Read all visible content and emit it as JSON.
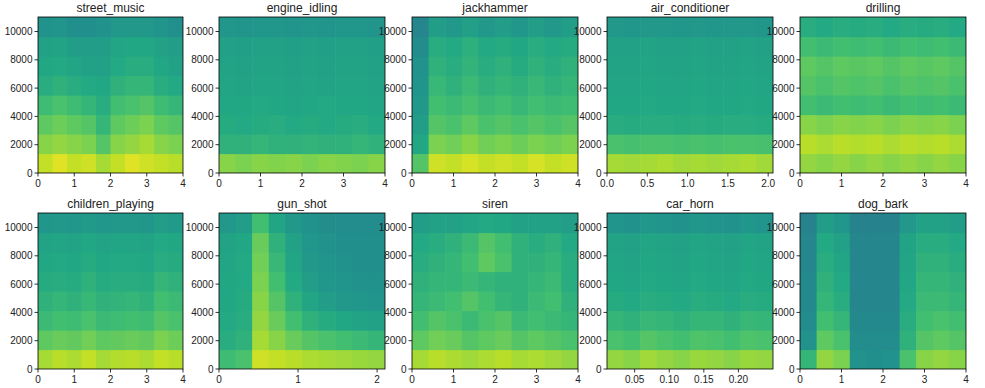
{
  "chart_data": [
    {
      "type": "heatmap",
      "title": "street_music",
      "xlim": [
        0,
        4
      ],
      "xticks": [
        0,
        1,
        2,
        3,
        4
      ],
      "ylim": [
        0,
        11025
      ],
      "yticks": [
        0,
        2000,
        4000,
        6000,
        8000,
        10000
      ],
      "zlim": [
        0,
        1
      ],
      "cells": [
        [
          0.9,
          0.95,
          0.9,
          0.92,
          0.85,
          0.9,
          0.95,
          0.92,
          0.9,
          0.88
        ],
        [
          0.8,
          0.82,
          0.8,
          0.78,
          0.7,
          0.8,
          0.82,
          0.85,
          0.8,
          0.78
        ],
        [
          0.72,
          0.75,
          0.72,
          0.7,
          0.62,
          0.72,
          0.75,
          0.78,
          0.72,
          0.7
        ],
        [
          0.65,
          0.68,
          0.65,
          0.62,
          0.58,
          0.66,
          0.68,
          0.7,
          0.65,
          0.62
        ],
        [
          0.58,
          0.6,
          0.58,
          0.56,
          0.55,
          0.6,
          0.62,
          0.62,
          0.58,
          0.56
        ],
        [
          0.55,
          0.56,
          0.54,
          0.52,
          0.52,
          0.56,
          0.58,
          0.58,
          0.55,
          0.52
        ],
        [
          0.52,
          0.53,
          0.5,
          0.5,
          0.5,
          0.54,
          0.55,
          0.55,
          0.52,
          0.5
        ],
        [
          0.45,
          0.46,
          0.44,
          0.44,
          0.45,
          0.48,
          0.48,
          0.48,
          0.46,
          0.44
        ]
      ]
    },
    {
      "type": "heatmap",
      "title": "engine_idling",
      "xlim": [
        0,
        4
      ],
      "xticks": [
        0,
        1,
        2,
        3,
        4
      ],
      "ylim": [
        0,
        11025
      ],
      "yticks": [
        0,
        2000,
        4000,
        6000,
        8000,
        10000
      ],
      "zlim": [
        0,
        1
      ],
      "cells": [
        [
          0.8,
          0.78,
          0.8,
          0.79,
          0.8,
          0.78,
          0.8,
          0.79,
          0.78,
          0.8
        ],
        [
          0.6,
          0.6,
          0.62,
          0.6,
          0.6,
          0.61,
          0.6,
          0.6,
          0.62,
          0.6
        ],
        [
          0.57,
          0.56,
          0.57,
          0.58,
          0.56,
          0.57,
          0.56,
          0.57,
          0.58,
          0.56
        ],
        [
          0.55,
          0.55,
          0.56,
          0.55,
          0.54,
          0.55,
          0.56,
          0.55,
          0.55,
          0.54
        ],
        [
          0.54,
          0.53,
          0.54,
          0.54,
          0.53,
          0.54,
          0.53,
          0.54,
          0.54,
          0.53
        ],
        [
          0.53,
          0.52,
          0.53,
          0.53,
          0.52,
          0.53,
          0.52,
          0.53,
          0.53,
          0.52
        ],
        [
          0.52,
          0.51,
          0.52,
          0.52,
          0.51,
          0.52,
          0.51,
          0.52,
          0.52,
          0.51
        ],
        [
          0.47,
          0.46,
          0.47,
          0.47,
          0.46,
          0.47,
          0.46,
          0.47,
          0.47,
          0.46
        ]
      ]
    },
    {
      "type": "heatmap",
      "title": "jackhammer",
      "xlim": [
        0,
        4
      ],
      "xticks": [
        0,
        1,
        2,
        3,
        4
      ],
      "ylim": [
        0,
        11025
      ],
      "yticks": [
        0,
        2000,
        4000,
        6000,
        8000,
        10000
      ],
      "zlim": [
        0,
        1
      ],
      "cells": [
        [
          0.7,
          0.92,
          0.9,
          0.93,
          0.9,
          0.92,
          0.9,
          0.93,
          0.9,
          0.92
        ],
        [
          0.55,
          0.78,
          0.76,
          0.8,
          0.76,
          0.78,
          0.75,
          0.78,
          0.76,
          0.78
        ],
        [
          0.5,
          0.7,
          0.68,
          0.72,
          0.68,
          0.7,
          0.68,
          0.7,
          0.68,
          0.7
        ],
        [
          0.48,
          0.66,
          0.64,
          0.67,
          0.64,
          0.66,
          0.63,
          0.66,
          0.64,
          0.65
        ],
        [
          0.46,
          0.63,
          0.6,
          0.64,
          0.6,
          0.62,
          0.6,
          0.63,
          0.6,
          0.62
        ],
        [
          0.45,
          0.6,
          0.58,
          0.61,
          0.58,
          0.6,
          0.57,
          0.6,
          0.58,
          0.6
        ],
        [
          0.42,
          0.58,
          0.56,
          0.59,
          0.56,
          0.57,
          0.55,
          0.58,
          0.56,
          0.57
        ],
        [
          0.4,
          0.5,
          0.48,
          0.51,
          0.48,
          0.5,
          0.47,
          0.5,
          0.48,
          0.5
        ]
      ]
    },
    {
      "type": "heatmap",
      "title": "air_conditioner",
      "xlim": [
        0,
        2.06
      ],
      "xticks": [
        {
          "value": 0,
          "label": "0.0"
        },
        {
          "value": 0.5,
          "label": "0.5"
        },
        {
          "value": 1,
          "label": "1.0"
        },
        {
          "value": 1.5,
          "label": "1.5"
        },
        {
          "value": 2,
          "label": "2.0"
        }
      ],
      "ylim": [
        0,
        11025
      ],
      "yticks": [
        0,
        2000,
        4000,
        6000,
        8000,
        10000
      ],
      "zlim": [
        0,
        1
      ],
      "cells": [
        [
          0.85,
          0.84,
          0.85,
          0.86,
          0.84,
          0.85,
          0.84,
          0.85,
          0.86,
          0.84
        ],
        [
          0.68,
          0.67,
          0.68,
          0.68,
          0.67,
          0.68,
          0.67,
          0.68,
          0.68,
          0.67
        ],
        [
          0.58,
          0.57,
          0.58,
          0.58,
          0.57,
          0.58,
          0.57,
          0.58,
          0.58,
          0.57
        ],
        [
          0.55,
          0.55,
          0.56,
          0.55,
          0.55,
          0.56,
          0.55,
          0.55,
          0.56,
          0.55
        ],
        [
          0.54,
          0.54,
          0.55,
          0.54,
          0.54,
          0.55,
          0.54,
          0.54,
          0.55,
          0.54
        ],
        [
          0.53,
          0.53,
          0.54,
          0.53,
          0.53,
          0.54,
          0.53,
          0.53,
          0.54,
          0.53
        ],
        [
          0.52,
          0.52,
          0.53,
          0.52,
          0.52,
          0.53,
          0.52,
          0.52,
          0.53,
          0.52
        ],
        [
          0.48,
          0.47,
          0.48,
          0.48,
          0.47,
          0.48,
          0.47,
          0.48,
          0.48,
          0.47
        ]
      ]
    },
    {
      "type": "heatmap",
      "title": "drilling",
      "xlim": [
        0,
        4
      ],
      "xticks": [
        0,
        1,
        2,
        3,
        4
      ],
      "ylim": [
        0,
        11025
      ],
      "yticks": [
        0,
        2000,
        4000,
        6000,
        8000,
        10000
      ],
      "zlim": [
        0,
        1
      ],
      "cells": [
        [
          0.82,
          0.8,
          0.82,
          0.8,
          0.82,
          0.8,
          0.82,
          0.8,
          0.82,
          0.8
        ],
        [
          0.88,
          0.86,
          0.88,
          0.87,
          0.88,
          0.86,
          0.88,
          0.87,
          0.88,
          0.86
        ],
        [
          0.8,
          0.78,
          0.8,
          0.79,
          0.8,
          0.78,
          0.8,
          0.79,
          0.8,
          0.78
        ],
        [
          0.66,
          0.64,
          0.66,
          0.65,
          0.66,
          0.64,
          0.66,
          0.65,
          0.66,
          0.64
        ],
        [
          0.7,
          0.68,
          0.7,
          0.69,
          0.7,
          0.68,
          0.7,
          0.69,
          0.7,
          0.68
        ],
        [
          0.72,
          0.7,
          0.72,
          0.71,
          0.72,
          0.7,
          0.72,
          0.71,
          0.72,
          0.7
        ],
        [
          0.66,
          0.64,
          0.66,
          0.65,
          0.66,
          0.64,
          0.66,
          0.65,
          0.66,
          0.64
        ],
        [
          0.58,
          0.56,
          0.58,
          0.57,
          0.58,
          0.56,
          0.58,
          0.57,
          0.58,
          0.56
        ]
      ]
    },
    {
      "type": "heatmap",
      "title": "children_playing",
      "xlim": [
        0,
        4
      ],
      "xticks": [
        0,
        1,
        2,
        3,
        4
      ],
      "ylim": [
        0,
        11025
      ],
      "yticks": [
        0,
        2000,
        4000,
        6000,
        8000,
        10000
      ],
      "zlim": [
        0,
        1
      ],
      "cells": [
        [
          0.85,
          0.88,
          0.86,
          0.9,
          0.85,
          0.87,
          0.88,
          0.86,
          0.9,
          0.88
        ],
        [
          0.72,
          0.74,
          0.73,
          0.76,
          0.72,
          0.73,
          0.74,
          0.73,
          0.78,
          0.75
        ],
        [
          0.64,
          0.66,
          0.65,
          0.68,
          0.64,
          0.65,
          0.66,
          0.65,
          0.7,
          0.68
        ],
        [
          0.6,
          0.62,
          0.6,
          0.63,
          0.6,
          0.61,
          0.62,
          0.6,
          0.66,
          0.64
        ],
        [
          0.57,
          0.58,
          0.57,
          0.6,
          0.57,
          0.58,
          0.58,
          0.57,
          0.62,
          0.6
        ],
        [
          0.55,
          0.56,
          0.55,
          0.57,
          0.55,
          0.56,
          0.56,
          0.55,
          0.58,
          0.57
        ],
        [
          0.53,
          0.54,
          0.53,
          0.55,
          0.53,
          0.54,
          0.54,
          0.53,
          0.56,
          0.55
        ],
        [
          0.47,
          0.48,
          0.47,
          0.49,
          0.47,
          0.48,
          0.48,
          0.47,
          0.5,
          0.49
        ]
      ]
    },
    {
      "type": "heatmap",
      "title": "gun_shot",
      "xlim": [
        0,
        2.1
      ],
      "xticks": [
        0,
        1,
        2
      ],
      "ylim": [
        0,
        11025
      ],
      "yticks": [
        0,
        2000,
        4000,
        6000,
        8000,
        10000
      ],
      "zlim": [
        0,
        1
      ],
      "cells": [
        [
          0.65,
          0.68,
          0.92,
          0.9,
          0.88,
          0.86,
          0.85,
          0.84,
          0.83,
          0.82
        ],
        [
          0.58,
          0.6,
          0.85,
          0.8,
          0.74,
          0.7,
          0.68,
          0.66,
          0.64,
          0.62
        ],
        [
          0.56,
          0.58,
          0.82,
          0.74,
          0.66,
          0.6,
          0.57,
          0.55,
          0.53,
          0.52
        ],
        [
          0.55,
          0.57,
          0.8,
          0.7,
          0.6,
          0.54,
          0.5,
          0.48,
          0.47,
          0.46
        ],
        [
          0.55,
          0.56,
          0.78,
          0.66,
          0.56,
          0.5,
          0.47,
          0.46,
          0.45,
          0.45
        ],
        [
          0.54,
          0.56,
          0.76,
          0.63,
          0.54,
          0.48,
          0.46,
          0.45,
          0.44,
          0.44
        ],
        [
          0.53,
          0.55,
          0.74,
          0.6,
          0.52,
          0.47,
          0.45,
          0.44,
          0.44,
          0.44
        ],
        [
          0.48,
          0.5,
          0.66,
          0.54,
          0.48,
          0.45,
          0.43,
          0.42,
          0.42,
          0.42
        ]
      ]
    },
    {
      "type": "heatmap",
      "title": "siren",
      "xlim": [
        0,
        4
      ],
      "xticks": [
        0,
        1,
        2,
        3,
        4
      ],
      "ylim": [
        0,
        11025
      ],
      "yticks": [
        0,
        2000,
        4000,
        6000,
        8000,
        10000
      ],
      "zlim": [
        0,
        1
      ],
      "cells": [
        [
          0.85,
          0.88,
          0.86,
          0.84,
          0.86,
          0.88,
          0.85,
          0.86,
          0.84,
          0.82
        ],
        [
          0.72,
          0.76,
          0.74,
          0.7,
          0.72,
          0.74,
          0.7,
          0.72,
          0.7,
          0.68
        ],
        [
          0.66,
          0.7,
          0.68,
          0.64,
          0.68,
          0.7,
          0.64,
          0.66,
          0.64,
          0.62
        ],
        [
          0.62,
          0.64,
          0.66,
          0.7,
          0.66,
          0.62,
          0.6,
          0.64,
          0.66,
          0.6
        ],
        [
          0.6,
          0.62,
          0.62,
          0.64,
          0.62,
          0.6,
          0.6,
          0.62,
          0.64,
          0.58
        ],
        [
          0.58,
          0.6,
          0.62,
          0.66,
          0.72,
          0.68,
          0.6,
          0.6,
          0.62,
          0.58
        ],
        [
          0.56,
          0.58,
          0.6,
          0.64,
          0.7,
          0.66,
          0.6,
          0.58,
          0.6,
          0.56
        ],
        [
          0.5,
          0.52,
          0.52,
          0.54,
          0.56,
          0.55,
          0.52,
          0.52,
          0.52,
          0.5
        ]
      ]
    },
    {
      "type": "heatmap",
      "title": "car_horn",
      "xlim": [
        0.01,
        0.25
      ],
      "xticks": [
        {
          "value": 0.05,
          "label": "0.05"
        },
        {
          "value": 0.1,
          "label": "0.10"
        },
        {
          "value": 0.15,
          "label": "0.15"
        },
        {
          "value": 0.2,
          "label": "0.20"
        }
      ],
      "ylim": [
        0,
        11025
      ],
      "yticks": [
        0,
        2000,
        4000,
        6000,
        8000,
        10000
      ],
      "zlim": [
        0,
        1
      ],
      "cells": [
        [
          0.82,
          0.8,
          0.84,
          0.82,
          0.8,
          0.83,
          0.82,
          0.8,
          0.83,
          0.82
        ],
        [
          0.68,
          0.66,
          0.7,
          0.68,
          0.66,
          0.69,
          0.68,
          0.66,
          0.69,
          0.68
        ],
        [
          0.62,
          0.6,
          0.63,
          0.62,
          0.6,
          0.62,
          0.62,
          0.6,
          0.63,
          0.62
        ],
        [
          0.57,
          0.56,
          0.58,
          0.57,
          0.56,
          0.58,
          0.57,
          0.56,
          0.58,
          0.57
        ],
        [
          0.55,
          0.54,
          0.56,
          0.55,
          0.54,
          0.56,
          0.55,
          0.54,
          0.56,
          0.55
        ],
        [
          0.54,
          0.53,
          0.55,
          0.54,
          0.53,
          0.55,
          0.54,
          0.53,
          0.55,
          0.54
        ],
        [
          0.53,
          0.52,
          0.54,
          0.53,
          0.52,
          0.54,
          0.53,
          0.52,
          0.54,
          0.53
        ],
        [
          0.46,
          0.45,
          0.47,
          0.46,
          0.45,
          0.47,
          0.46,
          0.45,
          0.47,
          0.46
        ]
      ]
    },
    {
      "type": "heatmap",
      "title": "dog_bark",
      "xlim": [
        0,
        4
      ],
      "xticks": [
        0,
        1,
        2,
        3,
        4
      ],
      "ylim": [
        0,
        11025
      ],
      "yticks": [
        0,
        2000,
        4000,
        6000,
        8000,
        10000
      ],
      "zlim": [
        0,
        1
      ],
      "cells": [
        [
          0.62,
          0.82,
          0.78,
          0.45,
          0.44,
          0.45,
          0.68,
          0.8,
          0.82,
          0.8
        ],
        [
          0.45,
          0.72,
          0.68,
          0.42,
          0.42,
          0.42,
          0.6,
          0.7,
          0.72,
          0.7
        ],
        [
          0.42,
          0.66,
          0.62,
          0.41,
          0.41,
          0.41,
          0.58,
          0.66,
          0.68,
          0.66
        ],
        [
          0.41,
          0.62,
          0.58,
          0.4,
          0.4,
          0.4,
          0.56,
          0.64,
          0.64,
          0.62
        ],
        [
          0.41,
          0.6,
          0.56,
          0.4,
          0.4,
          0.4,
          0.55,
          0.62,
          0.62,
          0.6
        ],
        [
          0.4,
          0.58,
          0.54,
          0.4,
          0.4,
          0.4,
          0.54,
          0.6,
          0.6,
          0.58
        ],
        [
          0.4,
          0.56,
          0.52,
          0.4,
          0.4,
          0.4,
          0.53,
          0.58,
          0.58,
          0.56
        ],
        [
          0.38,
          0.5,
          0.47,
          0.38,
          0.38,
          0.38,
          0.48,
          0.52,
          0.52,
          0.5
        ]
      ]
    }
  ]
}
